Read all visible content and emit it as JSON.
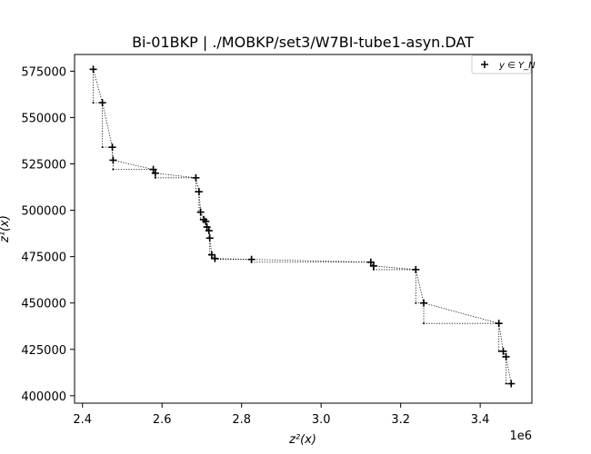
{
  "chart_data": {
    "type": "scatter",
    "title": "Bi-01BKP | ./MOBKP/set3/W7BI-tube1-asyn.DAT",
    "xlabel": "z²(x)",
    "ylabel": "z¹(x)",
    "x_multiplier": "1e6",
    "xlim": [
      2.38,
      3.53
    ],
    "ylim": [
      396000,
      584000
    ],
    "x_ticks": [
      2.4,
      2.6,
      2.8,
      3.0,
      3.2,
      3.4
    ],
    "x_tick_labels": [
      "2.4",
      "2.6",
      "2.8",
      "3.0",
      "3.2",
      "3.4"
    ],
    "y_ticks": [
      400000,
      425000,
      450000,
      475000,
      500000,
      525000,
      550000,
      575000
    ],
    "y_tick_labels": [
      "400000",
      "425000",
      "450000",
      "475000",
      "500000",
      "525000",
      "550000",
      "575000"
    ],
    "legend": {
      "position": "top-right",
      "entries": [
        {
          "label": "y ∈ Y_N",
          "marker": "plus"
        }
      ]
    },
    "grid": false,
    "series": [
      {
        "name": "y ∈ Y_N",
        "marker": "plus",
        "color": "#000000",
        "x": [
          2.427,
          2.45,
          2.475,
          2.477,
          2.578,
          2.583,
          2.685,
          2.693,
          2.697,
          2.705,
          2.71,
          2.713,
          2.718,
          2.72,
          2.725,
          2.733,
          2.825,
          3.125,
          3.132,
          3.238,
          3.258,
          3.447,
          3.458,
          3.465,
          3.478
        ],
        "y": [
          576000,
          558000,
          534000,
          527000,
          522000,
          520000,
          517500,
          510000,
          499000,
          495000,
          494000,
          491000,
          489000,
          485000,
          476000,
          474000,
          473500,
          472000,
          470000,
          468000,
          450000,
          439000,
          424000,
          421000,
          406500
        ]
      }
    ]
  },
  "colors": {
    "ink": "#000000",
    "background": "#ffffff",
    "legend_border": "#cccccc"
  }
}
